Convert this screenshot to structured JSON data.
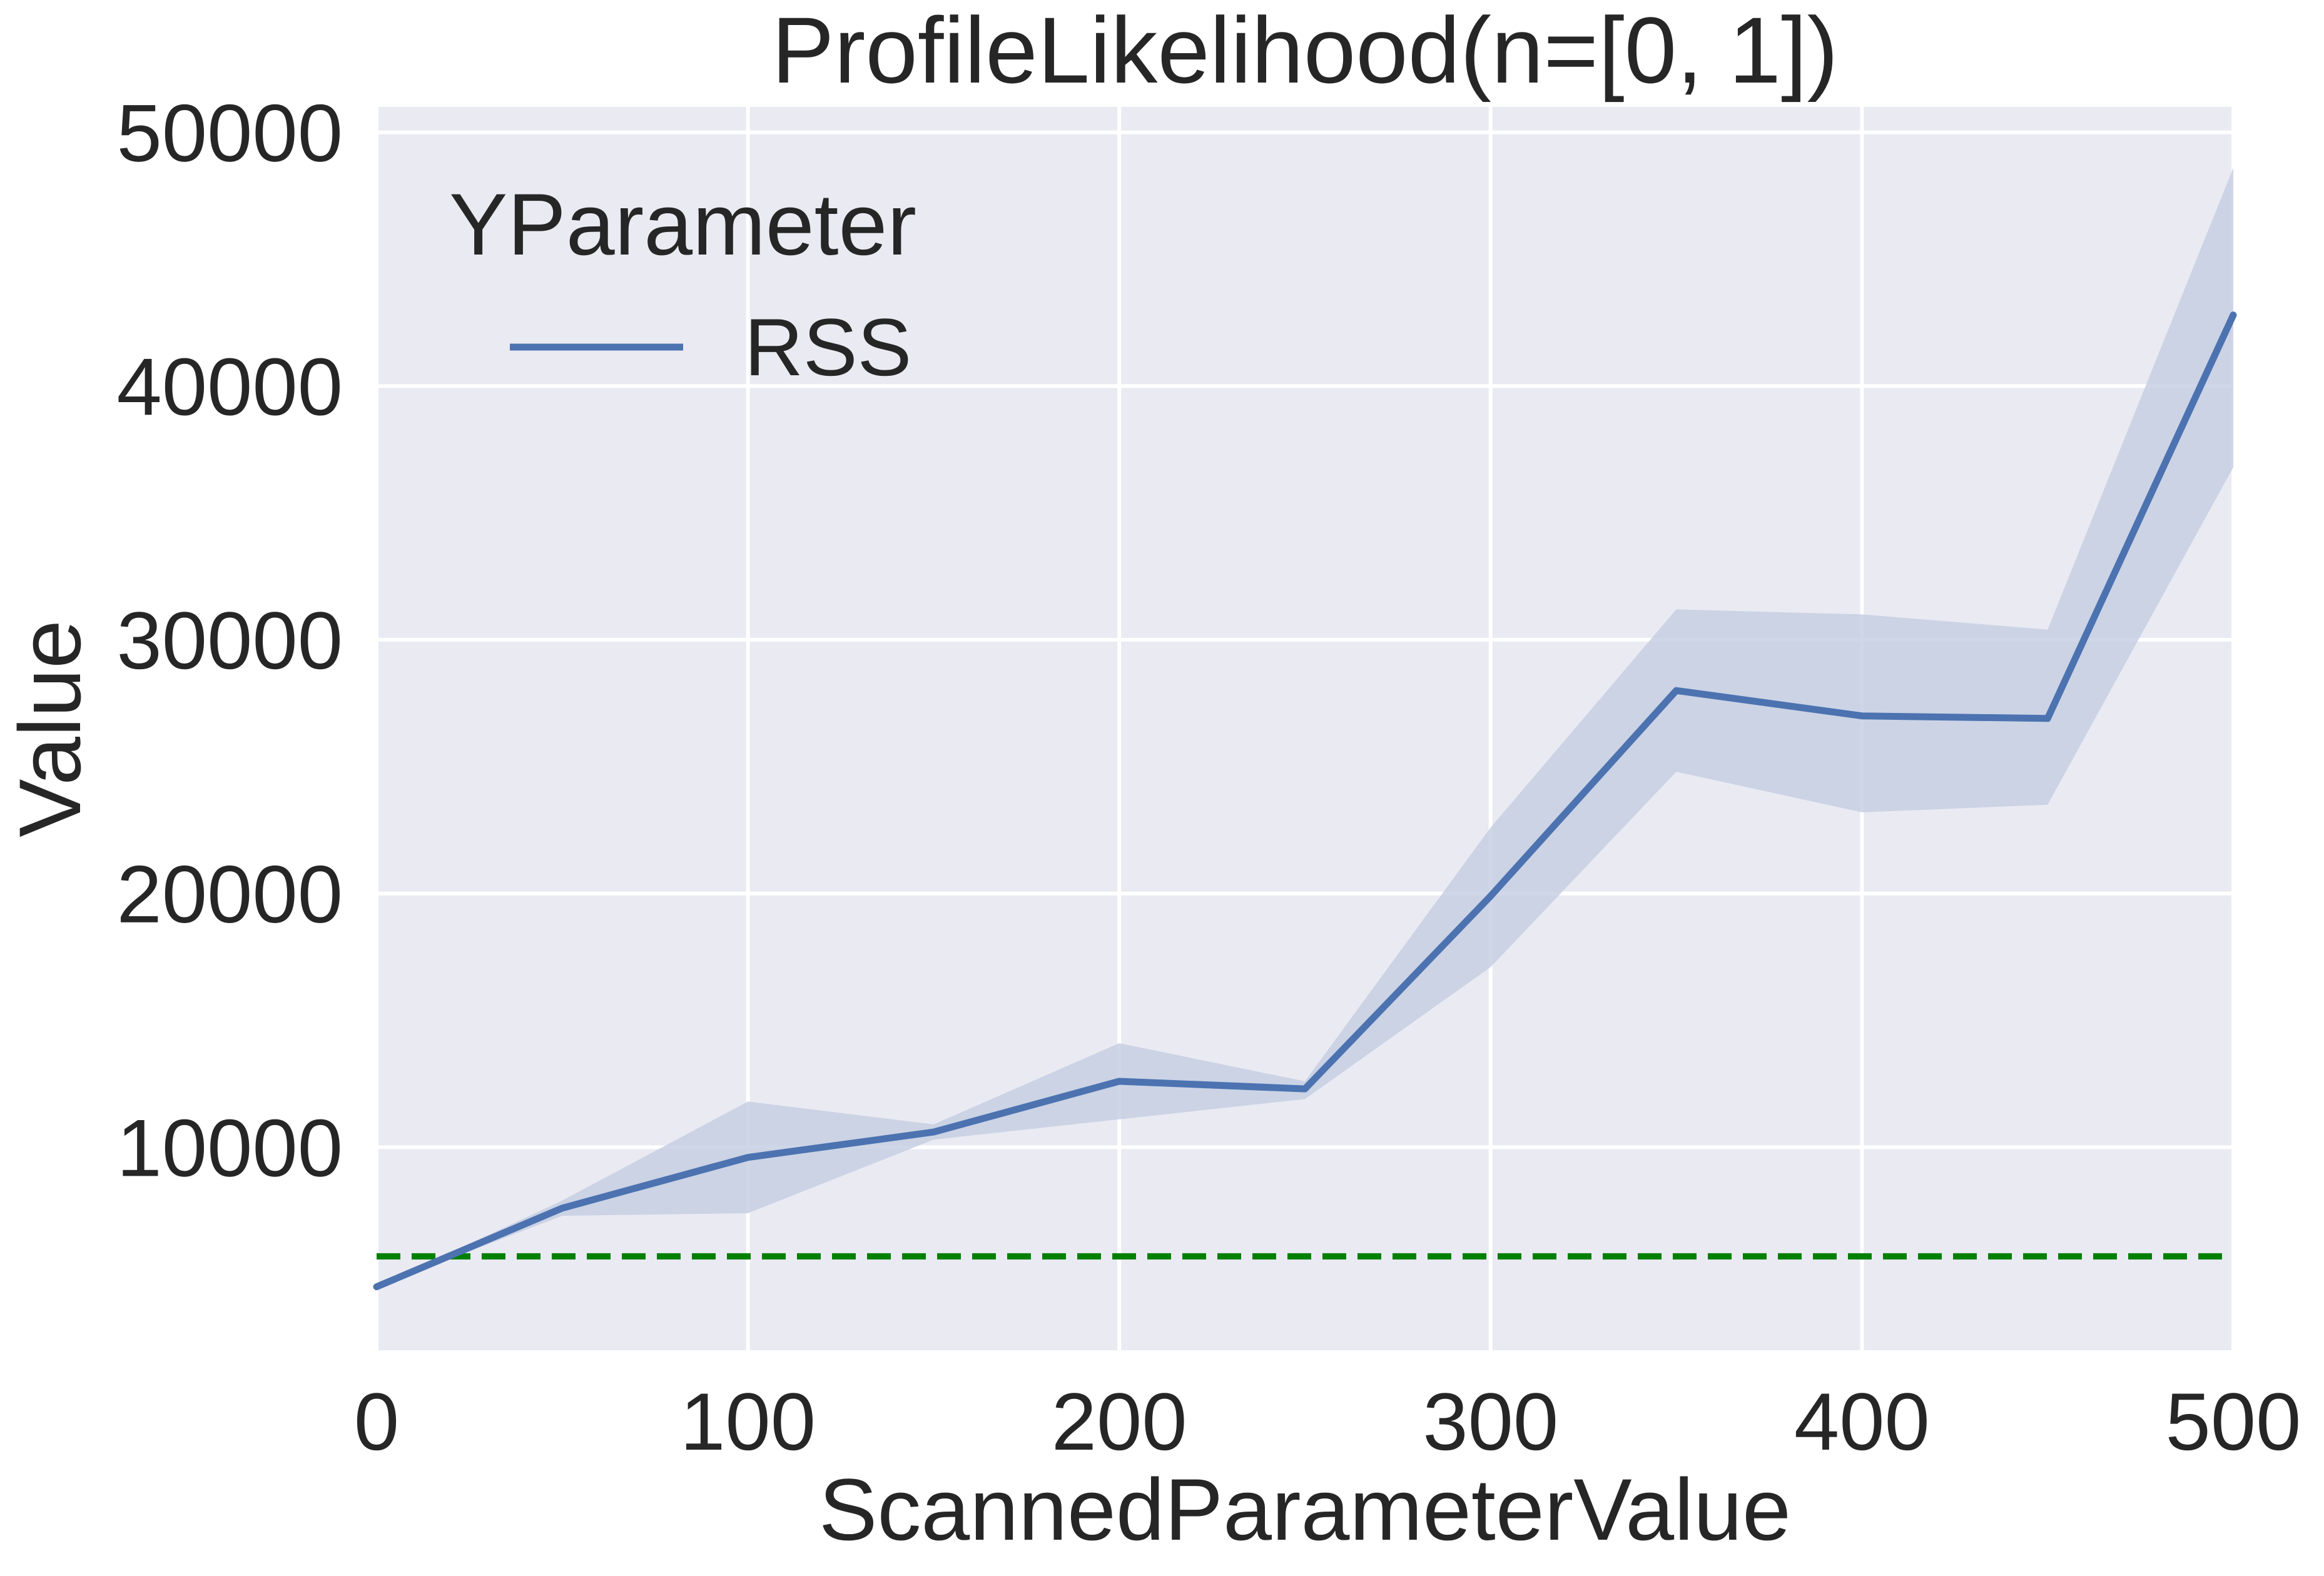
{
  "chart_data": {
    "type": "line",
    "title": "ProfileLikelihood(n=[0, 1])",
    "xlabel": "ScannedParameterValue",
    "ylabel": "Value",
    "xlim": [
      0,
      500
    ],
    "ylim": [
      2000,
      51000
    ],
    "x_ticks": [
      0,
      100,
      200,
      300,
      400,
      500
    ],
    "x_tick_labels": [
      "0",
      "100",
      "200",
      "300",
      "400",
      "500"
    ],
    "y_ticks": [
      10000,
      20000,
      30000,
      40000,
      50000
    ],
    "y_tick_labels": [
      "10000",
      "20000",
      "30000",
      "40000",
      "50000"
    ],
    "grid": true,
    "legend": {
      "title": "YParameter",
      "placement": "top-left",
      "entries": [
        "RSS"
      ]
    },
    "series": [
      {
        "name": "RSS",
        "color": "#4c72b0",
        "x": [
          0,
          50,
          100,
          150,
          200,
          250,
          300,
          350,
          400,
          450,
          500
        ],
        "y": [
          4500,
          7600,
          9600,
          10600,
          12600,
          12300,
          19900,
          28000,
          27000,
          26900,
          42800
        ],
        "lower": [
          4500,
          7300,
          7400,
          10300,
          11100,
          11900,
          17100,
          24800,
          23200,
          23500,
          36800
        ],
        "upper": [
          4500,
          7900,
          11800,
          10900,
          14100,
          12600,
          22600,
          31200,
          31000,
          30400,
          48600
        ]
      }
    ],
    "reference_line": {
      "orientation": "horizontal",
      "y": 5700,
      "color": "#008000",
      "style": "dashed"
    },
    "colors": {
      "plot_background": "#eaeaf2",
      "grid": "#ffffff",
      "band": "#c6cfe3"
    }
  }
}
